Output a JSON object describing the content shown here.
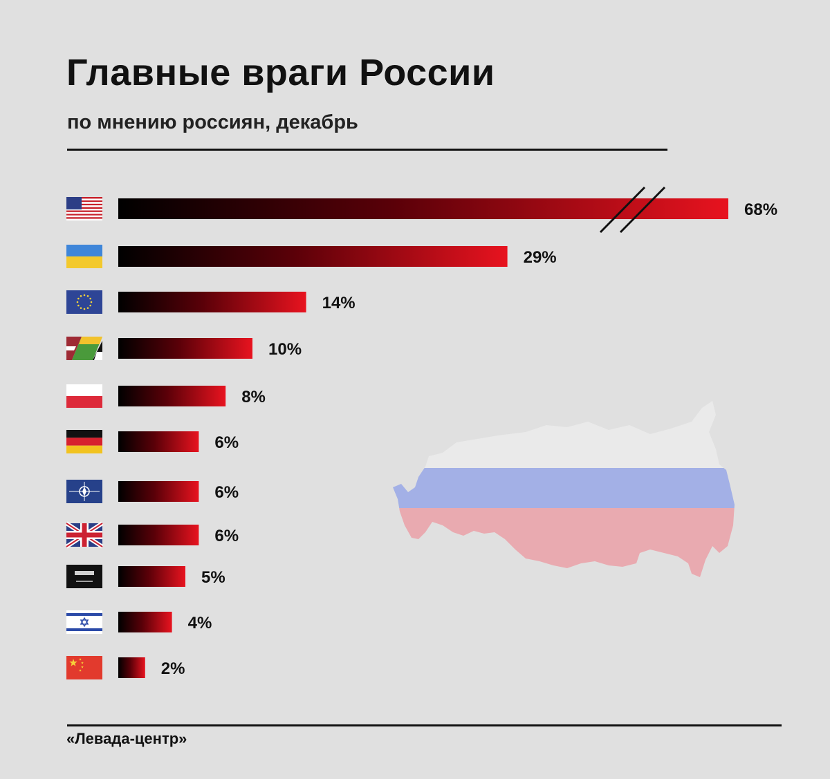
{
  "header": {
    "title": "Главные враги России",
    "subtitle": "по мнению россиян, декабрь"
  },
  "footer": {
    "source": "«Левада-центр»"
  },
  "colors": {
    "background": "#e0e0e0",
    "bar_start": "#000000",
    "bar_end": "#e8131f",
    "map_blue": "#a3b0e6",
    "map_red": "#e9aab0",
    "map_white": "#eaeaea"
  },
  "chart_data": {
    "type": "bar",
    "orientation": "horizontal",
    "axis_break": true,
    "categories": [
      "us-flag-icon",
      "ukraine-flag-icon",
      "eu-flag-icon",
      "baltic-flags-icon",
      "poland-flag-icon",
      "germany-flag-icon",
      "nato-flag-icon",
      "uk-flag-icon",
      "saudi-flag-icon",
      "israel-flag-icon",
      "china-flag-icon"
    ],
    "values": [
      68,
      29,
      14,
      10,
      8,
      6,
      6,
      6,
      5,
      4,
      2
    ],
    "labels": [
      "68%",
      "29%",
      "14%",
      "10%",
      "8%",
      "6%",
      "6%",
      "6%",
      "5%",
      "4%",
      "2%"
    ],
    "unit": "%"
  }
}
